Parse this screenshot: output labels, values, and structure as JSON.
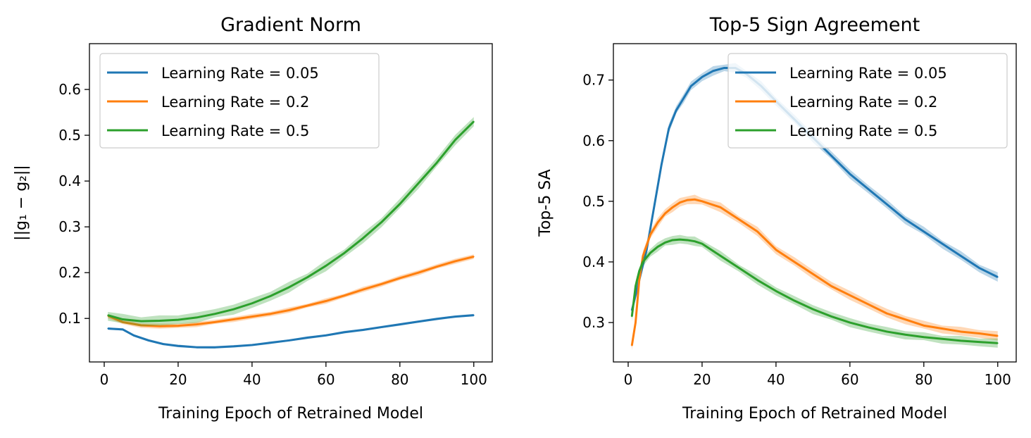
{
  "colors": {
    "blue": "#1f77b4",
    "orange": "#ff7f0e",
    "green": "#2ca02c"
  },
  "chart_data": [
    {
      "type": "line",
      "title": "Gradient Norm",
      "xlabel": "Training Epoch of Retrained Model",
      "ylabel": "||g₁ − g₂||",
      "xlim": [
        -4,
        105
      ],
      "ylim": [
        0.005,
        0.7
      ],
      "xticks": [
        0,
        20,
        40,
        60,
        80,
        100
      ],
      "yticks": [
        0.1,
        0.2,
        0.3,
        0.4,
        0.5,
        0.6
      ],
      "xtick_labels": [
        "0",
        "20",
        "40",
        "60",
        "80",
        "100"
      ],
      "ytick_labels": [
        "0.1",
        "0.2",
        "0.3",
        "0.4",
        "0.5",
        "0.6"
      ],
      "legend": "top-left",
      "grid": false,
      "shaded_band": true,
      "series": [
        {
          "name": "Learning Rate = 0.05",
          "color": "#1f77b4",
          "x": [
            1,
            5,
            8,
            12,
            16,
            20,
            25,
            30,
            35,
            40,
            45,
            50,
            55,
            60,
            65,
            70,
            75,
            80,
            85,
            90,
            95,
            100
          ],
          "y": [
            0.078,
            0.076,
            0.063,
            0.052,
            0.044,
            0.04,
            0.037,
            0.037,
            0.039,
            0.042,
            0.047,
            0.052,
            0.058,
            0.063,
            0.07,
            0.075,
            0.081,
            0.087,
            0.093,
            0.099,
            0.104,
            0.107
          ]
        },
        {
          "name": "Learning Rate = 0.2",
          "color": "#ff7f0e",
          "x": [
            1,
            5,
            10,
            15,
            20,
            25,
            30,
            35,
            40,
            45,
            50,
            55,
            60,
            65,
            70,
            75,
            80,
            85,
            90,
            95,
            100
          ],
          "y": [
            0.106,
            0.092,
            0.085,
            0.083,
            0.084,
            0.087,
            0.092,
            0.098,
            0.104,
            0.11,
            0.118,
            0.128,
            0.138,
            0.15,
            0.163,
            0.175,
            0.188,
            0.2,
            0.213,
            0.225,
            0.235
          ]
        },
        {
          "name": "Learning Rate = 0.5",
          "color": "#2ca02c",
          "x": [
            1,
            5,
            10,
            15,
            20,
            25,
            30,
            35,
            40,
            45,
            50,
            55,
            60,
            65,
            70,
            75,
            80,
            85,
            90,
            95,
            100
          ],
          "y": [
            0.107,
            0.098,
            0.094,
            0.095,
            0.097,
            0.102,
            0.11,
            0.12,
            0.133,
            0.149,
            0.168,
            0.19,
            0.215,
            0.243,
            0.275,
            0.31,
            0.35,
            0.395,
            0.44,
            0.49,
            0.53
          ]
        }
      ]
    },
    {
      "type": "line",
      "title": "Top-5 Sign Agreement",
      "xlabel": "Training Epoch of Retrained Model",
      "ylabel": "Top-5 SA",
      "xlim": [
        -4,
        105
      ],
      "ylim": [
        0.235,
        0.76
      ],
      "xticks": [
        0,
        20,
        40,
        60,
        80,
        100
      ],
      "yticks": [
        0.3,
        0.4,
        0.5,
        0.6,
        0.7
      ],
      "xtick_labels": [
        "0",
        "20",
        "40",
        "60",
        "80",
        "100"
      ],
      "ytick_labels": [
        "0.3",
        "0.4",
        "0.5",
        "0.6",
        "0.7"
      ],
      "legend": "top-right",
      "grid": false,
      "shaded_band": true,
      "series": [
        {
          "name": "Learning Rate = 0.05",
          "color": "#1f77b4",
          "x": [
            1,
            3,
            5,
            7,
            9,
            11,
            13,
            15,
            17,
            20,
            23,
            26,
            29,
            32,
            36,
            40,
            45,
            50,
            55,
            60,
            65,
            70,
            75,
            80,
            85,
            90,
            95,
            100
          ],
          "y": [
            0.32,
            0.37,
            0.42,
            0.49,
            0.56,
            0.62,
            0.65,
            0.67,
            0.69,
            0.705,
            0.715,
            0.72,
            0.72,
            0.71,
            0.69,
            0.665,
            0.635,
            0.605,
            0.575,
            0.545,
            0.52,
            0.495,
            0.47,
            0.45,
            0.43,
            0.41,
            0.39,
            0.375
          ]
        },
        {
          "name": "Learning Rate = 0.2",
          "color": "#ff7f0e",
          "x": [
            1,
            2,
            3,
            4,
            6,
            8,
            10,
            12,
            14,
            16,
            18,
            20,
            25,
            30,
            35,
            40,
            45,
            50,
            55,
            60,
            65,
            70,
            75,
            80,
            85,
            90,
            95,
            100
          ],
          "y": [
            0.262,
            0.3,
            0.37,
            0.41,
            0.445,
            0.465,
            0.48,
            0.49,
            0.498,
            0.502,
            0.503,
            0.5,
            0.49,
            0.47,
            0.45,
            0.42,
            0.4,
            0.38,
            0.36,
            0.345,
            0.33,
            0.315,
            0.305,
            0.295,
            0.29,
            0.285,
            0.282,
            0.278
          ]
        },
        {
          "name": "Learning Rate = 0.5",
          "color": "#2ca02c",
          "x": [
            1,
            2,
            3,
            4,
            6,
            8,
            10,
            12,
            14,
            16,
            18,
            20,
            25,
            30,
            35,
            40,
            45,
            50,
            55,
            60,
            65,
            70,
            75,
            80,
            85,
            90,
            95,
            100
          ],
          "y": [
            0.31,
            0.36,
            0.385,
            0.4,
            0.415,
            0.425,
            0.432,
            0.436,
            0.437,
            0.436,
            0.434,
            0.43,
            0.41,
            0.39,
            0.37,
            0.352,
            0.336,
            0.322,
            0.31,
            0.3,
            0.292,
            0.285,
            0.28,
            0.276,
            0.273,
            0.27,
            0.268,
            0.266
          ]
        }
      ]
    }
  ]
}
